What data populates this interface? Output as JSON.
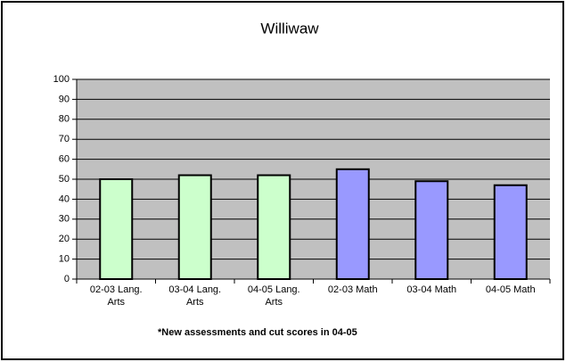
{
  "chart_data": {
    "type": "bar",
    "title": "Williwaw",
    "categories": [
      "02-03 Lang. Arts",
      "03-04 Lang. Arts",
      "04-05 Lang. Arts",
      "02-03 Math",
      "03-04 Math",
      "04-05 Math"
    ],
    "values": [
      50,
      52,
      52,
      55,
      49,
      47
    ],
    "colors": [
      "#ccffcc",
      "#ccffcc",
      "#ccffcc",
      "#9999ff",
      "#9999ff",
      "#9999ff"
    ],
    "annotation": "*New assessments and cut scores in 04-05",
    "ylim": [
      0,
      100
    ],
    "yticks": [
      0,
      10,
      20,
      30,
      40,
      50,
      60,
      70,
      80,
      90,
      100
    ],
    "grid": true
  }
}
